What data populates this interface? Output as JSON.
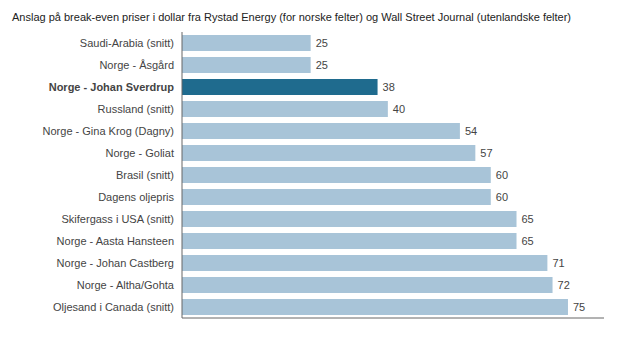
{
  "chart_data": {
    "type": "bar",
    "orientation": "horizontal",
    "title": "Anslag på break-even priser i dollar fra Rystad Energy (for norske felter) og Wall Street Journal (utenlandske felter)",
    "categories": [
      "Saudi-Arabia (snitt)",
      "Norge - Åsgård",
      "Norge - Johan Sverdrup",
      "Russland (snitt)",
      "Norge - Gina Krog (Dagny)",
      "Norge - Goliat",
      "Brasil (snitt)",
      "Dagens oljepris",
      "Skifergass i USA (snitt)",
      "Norge - Aasta Hansteen",
      "Norge - Johan Castberg",
      "Norge - Altha/Gohta",
      "Oljesand i Canada (snitt)"
    ],
    "values": [
      25,
      25,
      38,
      40,
      54,
      57,
      60,
      60,
      65,
      65,
      71,
      72,
      75
    ],
    "colors": [
      "#a8c4d8",
      "#a8c4d8",
      "#1f6b8e",
      "#a8c4d8",
      "#a8c4d8",
      "#a8c4d8",
      "#a8c4d8",
      "#a8c4d8",
      "#a8c4d8",
      "#a8c4d8",
      "#a8c4d8",
      "#a8c4d8",
      "#a8c4d8"
    ],
    "xlim": [
      0,
      82
    ],
    "grid": false,
    "data_labels": true,
    "tick_labels": "y"
  }
}
